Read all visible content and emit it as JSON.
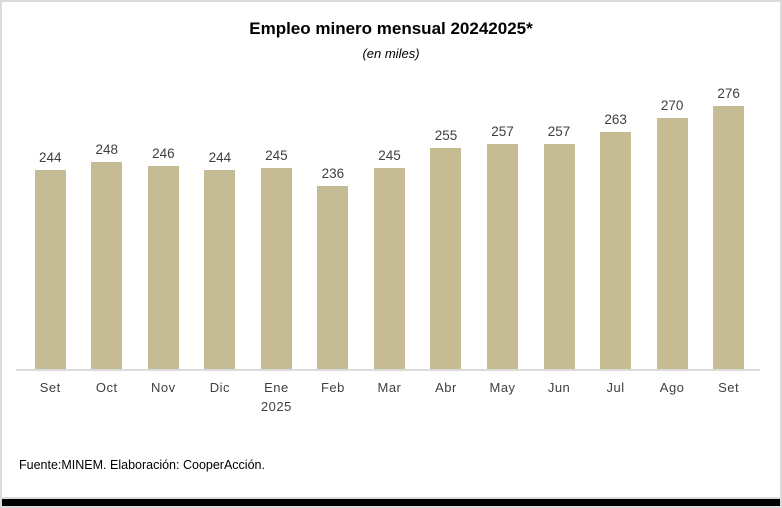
{
  "page": {
    "title": "Empleo minero mensual 20242025*",
    "subtitle": "(en miles)",
    "source_note": "Fuente:MINEM. Elaboración: CooperAcción."
  },
  "chart_data": {
    "type": "bar",
    "title": "Empleo minero mensual 20242025*",
    "subtitle": "(en miles)",
    "categories": [
      "Set",
      "Oct",
      "Nov",
      "Dic",
      "Ene",
      "Feb",
      "Mar",
      "Abr",
      "May",
      "Jun",
      "Jul",
      "Ago",
      "Set"
    ],
    "category_sublabels": [
      "",
      "",
      "",
      "",
      "2025",
      "",
      "",
      "",
      "",
      "",
      "",
      "",
      ""
    ],
    "values": [
      244,
      248,
      246,
      244,
      245,
      236,
      245,
      255,
      257,
      257,
      263,
      270,
      276
    ],
    "data_labels_shown": true,
    "xlabel": "",
    "ylabel": "",
    "ylim": [
      145,
      295
    ],
    "y_axis_shown": false,
    "grid": false,
    "legend": false,
    "bar_color": "#C6BC94",
    "label_color": "#404040",
    "source_note": "Fuente:MINEM. Elaboración: CooperAcción."
  },
  "colors": {
    "bar_fill": "#C6BC94",
    "axis_line": "#DCDCDC",
    "frame_border": "#DBDBDB",
    "bottom_bar": "#000000",
    "value_label_text": "#404040",
    "title_text": "#000000"
  }
}
